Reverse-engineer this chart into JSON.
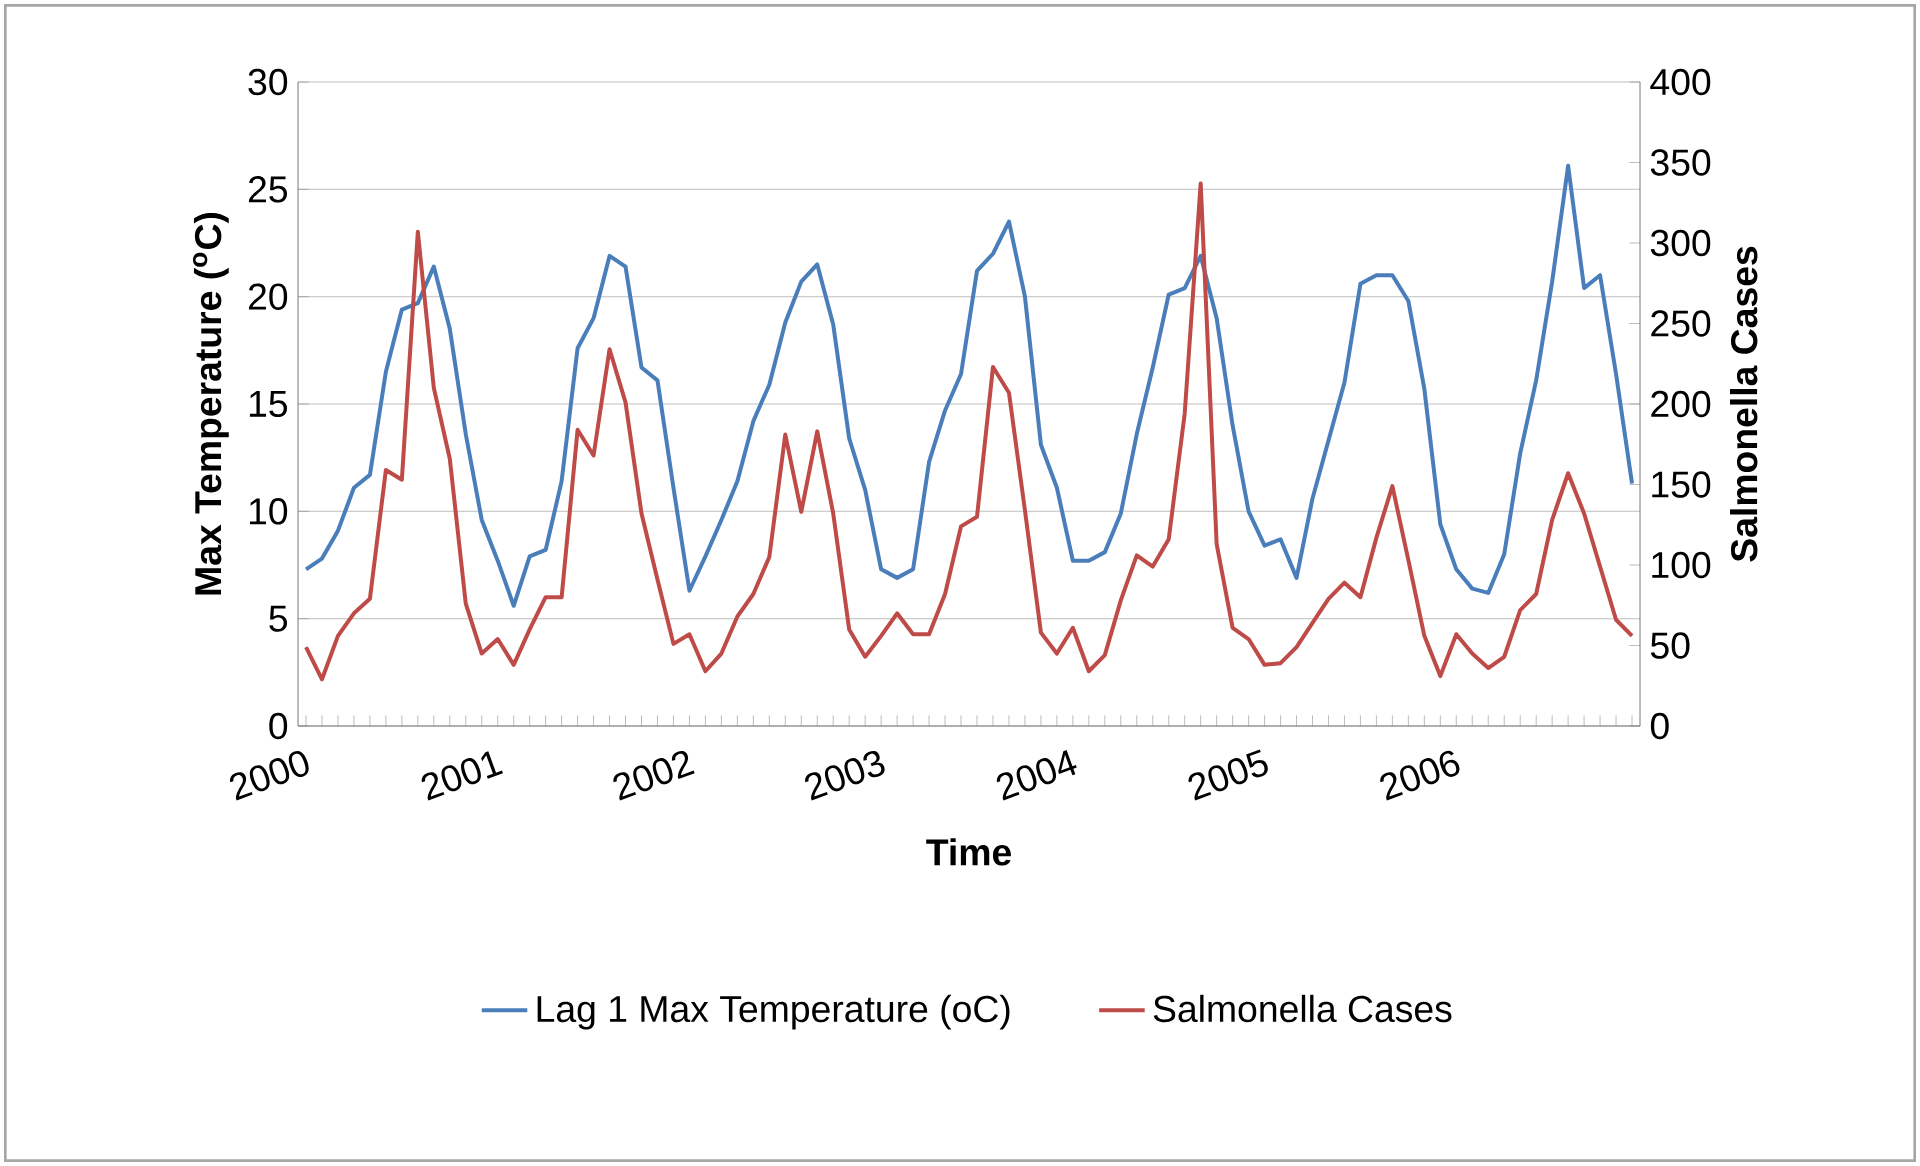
{
  "chart_data": {
    "type": "line",
    "xlabel": "Time",
    "ylabel": "Max Temperature ($^{o}$C)",
    "y2label": "Salmonella Cases",
    "categories": [
      "2000",
      null,
      null,
      null,
      null,
      null,
      null,
      null,
      null,
      null,
      null,
      null,
      "2001",
      null,
      null,
      null,
      null,
      null,
      null,
      null,
      null,
      null,
      null,
      null,
      "2002",
      null,
      null,
      null,
      null,
      null,
      null,
      null,
      null,
      null,
      null,
      null,
      "2003",
      null,
      null,
      null,
      null,
      null,
      null,
      null,
      null,
      null,
      null,
      null,
      "2004",
      null,
      null,
      null,
      null,
      null,
      null,
      null,
      null,
      null,
      null,
      null,
      "2005",
      null,
      null,
      null,
      null,
      null,
      null,
      null,
      null,
      null,
      null,
      null,
      "2006",
      null,
      null,
      null,
      null,
      null,
      null,
      null,
      null,
      null,
      null,
      null
    ],
    "series": [
      {
        "name": "Lag 1 Max Temperature (oC)",
        "color": "#4a7ebb",
        "values": [
          7.3,
          7.8,
          9.1,
          11.1,
          11.7,
          16.5,
          19.4,
          19.7,
          21.4,
          18.5,
          13.6,
          9.6,
          7.7,
          5.6,
          7.9,
          8.2,
          11.4,
          17.6,
          19.0,
          21.9,
          21.4,
          16.7,
          16.1,
          11.1,
          6.3,
          7.9,
          9.6,
          11.4,
          14.2,
          15.9,
          18.8,
          20.7,
          21.5,
          18.7,
          13.4,
          11.0,
          7.3,
          6.9,
          7.3,
          12.3,
          14.7,
          16.4,
          21.2,
          22.0,
          23.5,
          20.0,
          13.1,
          11.1,
          7.7,
          7.7,
          8.1,
          9.9,
          13.6,
          16.7,
          20.1,
          20.4,
          21.9,
          19.0,
          14.0,
          10.0,
          8.4,
          8.7,
          6.9,
          10.6,
          13.3,
          16.0,
          20.6,
          21.0,
          21.0,
          19.8,
          15.7,
          9.4,
          7.3,
          6.4,
          6.2,
          8.0,
          12.7,
          16.1,
          20.7,
          26.1,
          20.4,
          21.0,
          16.4,
          11.3
        ]
      },
      {
        "name": "Salmonella Cases",
        "color": "#be4b48",
        "axis": "y2",
        "values": [
          49,
          29,
          56,
          70,
          79,
          159,
          153,
          307,
          210,
          166,
          76,
          45,
          54,
          38,
          60,
          80,
          80,
          184,
          168,
          234,
          201,
          132,
          91,
          51,
          57,
          34,
          45,
          68,
          82,
          105,
          181,
          133,
          183,
          132,
          60,
          43,
          56,
          70,
          57,
          57,
          82,
          124,
          130,
          223,
          207,
          134,
          58,
          45,
          61,
          34,
          44,
          78,
          106,
          99,
          116,
          194,
          337,
          113,
          61,
          54,
          38,
          39,
          49,
          64,
          79,
          89,
          80,
          117,
          149,
          103,
          56,
          31,
          57,
          45,
          36,
          43,
          72,
          82,
          128,
          157,
          132,
          99,
          66,
          56
        ]
      }
    ],
    "ylim": [
      0,
      30
    ],
    "yticks": [
      0,
      5,
      10,
      15,
      20,
      25,
      30
    ],
    "y2lim": [
      0,
      400
    ],
    "y2ticks": [
      0,
      50,
      100,
      150,
      200,
      250,
      300,
      350,
      400
    ],
    "grid": "y",
    "legend": "bottom"
  }
}
